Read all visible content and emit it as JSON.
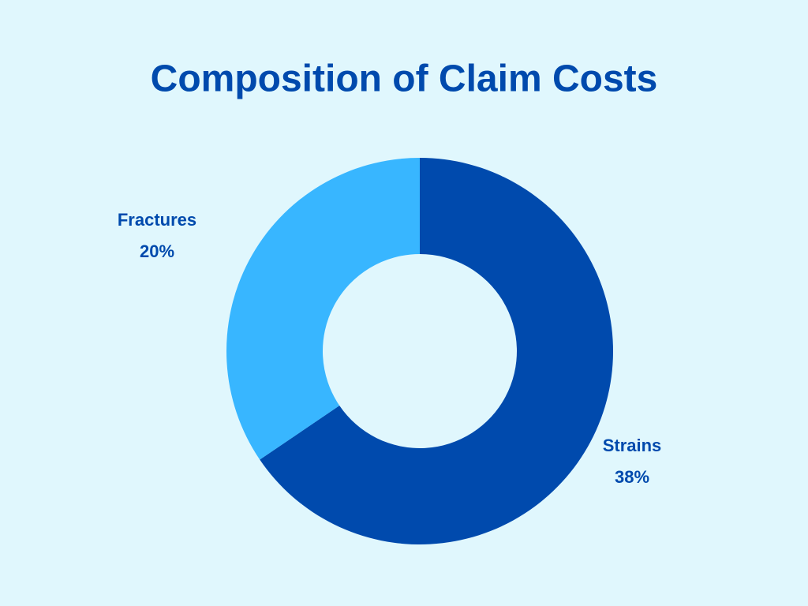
{
  "chart_data": {
    "type": "donut",
    "title": "Composition of Claim Costs",
    "categories": [
      "Strains",
      "Fractures"
    ],
    "values": [
      38,
      20
    ],
    "value_labels": [
      "38%",
      "20%"
    ],
    "colors": [
      "#004aad",
      "#38b6ff"
    ]
  }
}
